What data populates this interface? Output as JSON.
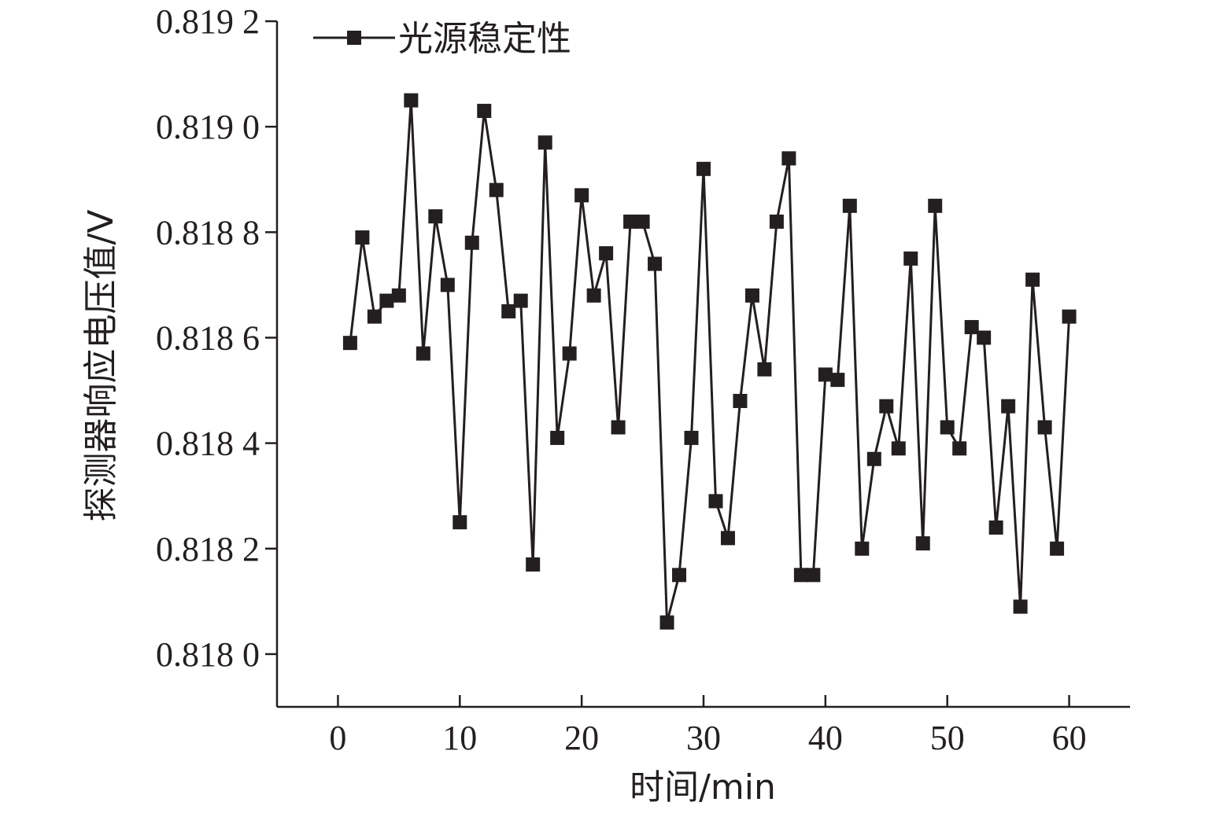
{
  "chart_data": {
    "type": "line",
    "title": "",
    "xlabel": "时间/min",
    "ylabel": "探测器响应电压值/V",
    "xlim": [
      -5,
      65
    ],
    "ylim": [
      0.8179,
      0.8192
    ],
    "x_ticks": [
      0,
      10,
      20,
      30,
      40,
      50,
      60
    ],
    "x_tick_labels": [
      "0",
      "10",
      "20",
      "30",
      "40",
      "50",
      "60"
    ],
    "y_ticks": [
      0.818,
      0.8182,
      0.8184,
      0.8186,
      0.8188,
      0.819,
      0.8192
    ],
    "y_tick_labels": [
      "0.818 0",
      "0.818 2",
      "0.818 4",
      "0.818 6",
      "0.818 8",
      "0.819 0",
      "0.819 2"
    ],
    "grid": false,
    "legend": {
      "placement": "top-left",
      "entries": [
        "光源稳定性"
      ]
    },
    "series": [
      {
        "name": "光源稳定性",
        "marker": "square",
        "color": "#231f20",
        "x": [
          1,
          2,
          3,
          4,
          5,
          6,
          7,
          8,
          9,
          10,
          11,
          12,
          13,
          14,
          15,
          16,
          17,
          18,
          19,
          20,
          21,
          22,
          23,
          24,
          25,
          26,
          27,
          28,
          29,
          30,
          31,
          32,
          33,
          34,
          35,
          36,
          37,
          38,
          39,
          40,
          41,
          42,
          43,
          44,
          45,
          46,
          47,
          48,
          49,
          50,
          51,
          52,
          53,
          54,
          55,
          56,
          57,
          58,
          59,
          60
        ],
        "y": [
          0.81859,
          0.81879,
          0.81864,
          0.81867,
          0.81868,
          0.81905,
          0.81857,
          0.81883,
          0.8187,
          0.81825,
          0.81878,
          0.81903,
          0.81888,
          0.81865,
          0.81867,
          0.81817,
          0.81897,
          0.81841,
          0.81857,
          0.81887,
          0.81868,
          0.81876,
          0.81843,
          0.81882,
          0.81882,
          0.81874,
          0.81806,
          0.81815,
          0.81841,
          0.81892,
          0.81829,
          0.81822,
          0.81848,
          0.81868,
          0.81854,
          0.81882,
          0.81894,
          0.81815,
          0.81815,
          0.81853,
          0.81852,
          0.81885,
          0.8182,
          0.81837,
          0.81847,
          0.81839,
          0.81875,
          0.81821,
          0.81885,
          0.81843,
          0.81839,
          0.81862,
          0.8186,
          0.81824,
          0.81847,
          0.81809,
          0.81871,
          0.81843,
          0.8182,
          0.81864
        ]
      }
    ]
  }
}
